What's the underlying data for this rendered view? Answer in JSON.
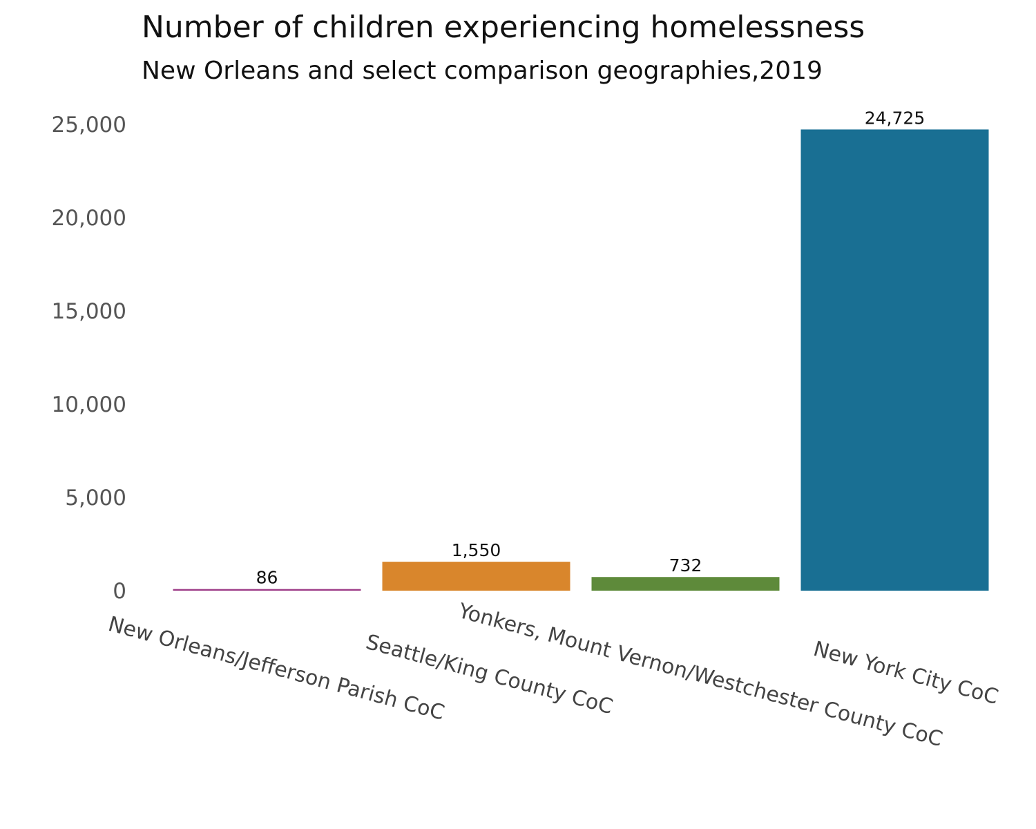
{
  "chart_data": {
    "type": "bar",
    "title": "Number of children experiencing homelessness",
    "subtitle": "New Orleans and select comparison geographies,2019",
    "categories": [
      "New Orleans/Jefferson Parish CoC",
      "Seattle/King County CoC",
      "Yonkers, Mount Vernon/Westchester County CoC",
      "New York City CoC"
    ],
    "values": [
      86,
      1550,
      732,
      24725
    ],
    "value_labels": [
      "86",
      "1,550",
      "732",
      "24,725"
    ],
    "colors": [
      "#9c3a87",
      "#d9862c",
      "#5e8a3a",
      "#196f93"
    ],
    "yticks": [
      0,
      5000,
      10000,
      15000,
      20000,
      25000
    ],
    "ytick_labels": [
      "0",
      "5,000",
      "10,000",
      "15,000",
      "20,000",
      "25,000"
    ],
    "ylim": [
      0,
      25000
    ],
    "xlabel": "",
    "ylabel": "",
    "grid": false,
    "legend": "none"
  }
}
